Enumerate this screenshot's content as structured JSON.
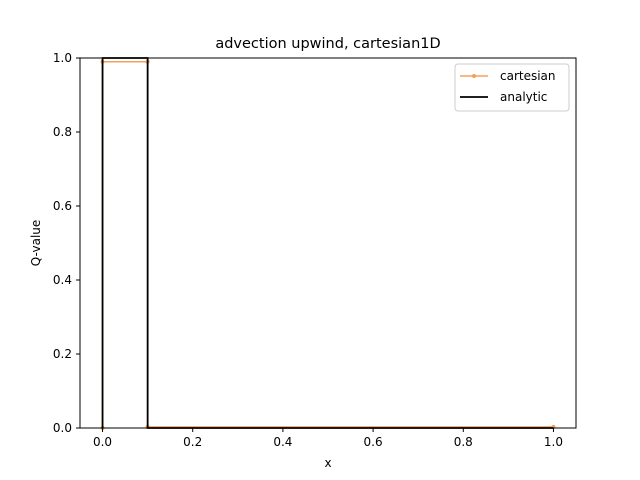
{
  "chart_data": {
    "type": "line",
    "title": "advection upwind, cartesian1D",
    "xlabel": "x",
    "ylabel": "Q-value",
    "xlim": [
      -0.05,
      1.05
    ],
    "ylim": [
      0.0,
      1.0
    ],
    "xticks": [
      "0.0",
      "0.2",
      "0.4",
      "0.6",
      "0.8",
      "1.0"
    ],
    "yticks": [
      "0.0",
      "0.2",
      "0.4",
      "0.6",
      "0.8",
      "1.0"
    ],
    "grid": false,
    "legend_position": "top-right",
    "series": [
      {
        "name": "cartesian",
        "color": "#f5a05a",
        "marker": "dot",
        "x": [
          0.0,
          0.0,
          0.1,
          0.1,
          1.0
        ],
        "y": [
          0.0,
          0.99,
          0.99,
          0.003,
          0.003
        ]
      },
      {
        "name": "analytic",
        "color": "#000000",
        "marker": "none",
        "x": [
          0.0,
          0.0,
          0.1,
          0.1,
          1.0
        ],
        "y": [
          0.0,
          1.0,
          1.0,
          0.0,
          0.0
        ]
      }
    ]
  }
}
